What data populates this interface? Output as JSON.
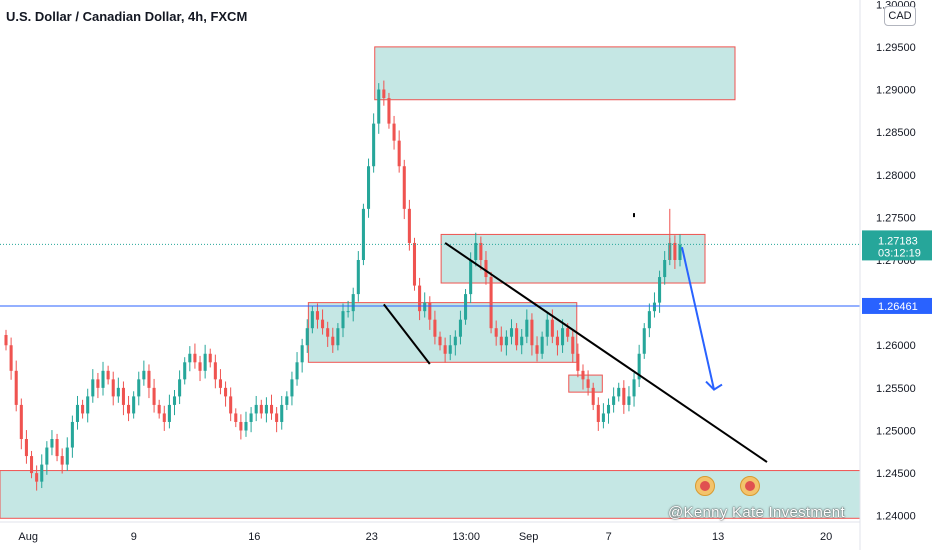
{
  "title": "U.S. Dollar / Canadian Dollar, 4h, FXCM",
  "currency_badge": "CAD",
  "watermark": "@Kenny Kate Investment",
  "colors": {
    "up": "#26a69a",
    "down": "#ef5350",
    "zone_fill": "#b2dfdb",
    "zone_border": "#ef5350",
    "hline": "#2962ff",
    "arrow": "#2962ff",
    "trendline": "#000000",
    "price_label_bg": "#26a69a",
    "hline_label_bg": "#2962ff"
  },
  "chart_data": {
    "type": "candlestick",
    "title": "U.S. Dollar / Canadian Dollar, 4h, FXCM",
    "ylim": [
      1.2395,
      1.3005
    ],
    "y_ticks": [
      "1.30000",
      "1.29500",
      "1.29000",
      "1.28500",
      "1.28000",
      "1.27500",
      "1.27000",
      "1.26500",
      "1.26000",
      "1.25500",
      "1.25000",
      "1.24500",
      "1.24000"
    ],
    "x_ticks": [
      "Aug",
      "9",
      "16",
      "23",
      "13:00",
      "Sep",
      "7",
      "13",
      "20"
    ],
    "current_price": "1.27183",
    "countdown": "03:12:19",
    "horizontal_line_price": "1.26461",
    "closes": [
      1.26,
      1.257,
      1.253,
      1.249,
      1.247,
      1.245,
      1.244,
      1.246,
      1.248,
      1.249,
      1.247,
      1.246,
      1.248,
      1.251,
      1.253,
      1.252,
      1.254,
      1.256,
      1.255,
      1.257,
      1.256,
      1.254,
      1.255,
      1.253,
      1.252,
      1.254,
      1.256,
      1.257,
      1.255,
      1.253,
      1.252,
      1.251,
      1.253,
      1.254,
      1.256,
      1.258,
      1.259,
      1.258,
      1.257,
      1.259,
      1.258,
      1.256,
      1.255,
      1.254,
      1.252,
      1.251,
      1.25,
      1.251,
      1.252,
      1.253,
      1.252,
      1.253,
      1.252,
      1.251,
      1.253,
      1.254,
      1.256,
      1.258,
      1.26,
      1.262,
      1.264,
      1.263,
      1.262,
      1.261,
      1.26,
      1.262,
      1.264,
      1.264,
      1.266,
      1.27,
      1.276,
      1.281,
      1.286,
      1.29,
      1.289,
      1.286,
      1.284,
      1.281,
      1.276,
      1.272,
      1.267,
      1.264,
      1.265,
      1.263,
      1.261,
      1.26,
      1.259,
      1.26,
      1.261,
      1.263,
      1.266,
      1.27,
      1.272,
      1.27,
      1.268,
      1.262,
      1.261,
      1.26,
      1.261,
      1.262,
      1.26,
      1.261,
      1.263,
      1.26,
      1.259,
      1.261,
      1.263,
      1.261,
      1.26,
      1.262,
      1.261,
      1.259,
      1.257,
      1.256,
      1.255,
      1.253,
      1.251,
      1.252,
      1.253,
      1.254,
      1.255,
      1.253,
      1.254,
      1.256,
      1.259,
      1.262,
      1.264,
      1.265,
      1.268,
      1.27,
      1.272,
      1.27,
      1.2718
    ],
    "zones": [
      {
        "from_index": 73,
        "to_index": "right",
        "y_top": 1.295,
        "y_bottom": 1.2888
      },
      {
        "from_index": 86,
        "to_index": "right",
        "y_top": 1.273,
        "y_bottom": 1.2673
      },
      {
        "from_index": 60,
        "to_index": 111,
        "y_top": 1.265,
        "y_bottom": 1.258
      },
      {
        "from_index": 111,
        "to_index": 116,
        "y_top": 1.2565,
        "y_bottom": 1.2545
      },
      {
        "from_index": 0,
        "to_index": "right",
        "y_top": 1.2453,
        "y_bottom": 1.2397
      }
    ]
  }
}
